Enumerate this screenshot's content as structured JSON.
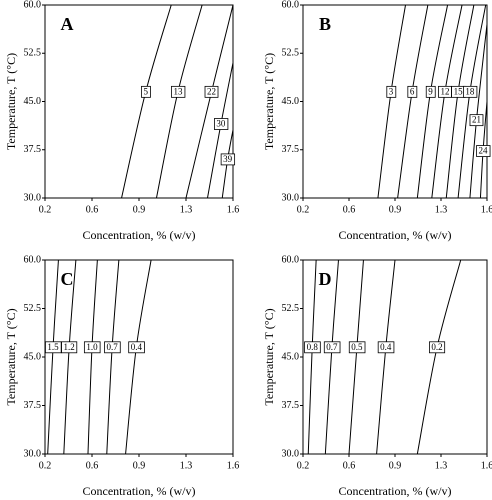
{
  "chart_data": [
    {
      "type": "contour",
      "label": "A",
      "x_label": "Concentration, % (w/v)",
      "y_label": "Temperature, T (°C)",
      "xlim": [
        0.2,
        1.6
      ],
      "ylim": [
        30,
        60
      ],
      "xticks": [
        0.2,
        {
          "value": 0.55,
          "label": "0.6"
        },
        0.9,
        {
          "value": 1.25,
          "label": "1.3"
        },
        1.6
      ],
      "yticks": [
        {
          "value": 30,
          "label": "30.0"
        },
        37.5,
        {
          "value": 45,
          "label": "45.0"
        },
        52.5,
        {
          "value": 60,
          "label": "60.0"
        }
      ],
      "levels": [
        5,
        13,
        22,
        30,
        39
      ],
      "lines": [
        {
          "x": [
            0.77,
            0.95,
            1.14
          ],
          "y": [
            30,
            46.5,
            60
          ]
        },
        {
          "x": [
            1.03,
            1.19,
            1.37
          ],
          "y": [
            30,
            46.5,
            60
          ]
        },
        {
          "x": [
            1.25,
            1.44,
            1.6
          ],
          "y": [
            30,
            46.5,
            60
          ]
        },
        {
          "x": [
            1.41,
            1.51,
            1.6
          ],
          "y": [
            30,
            41.5,
            51
          ]
        },
        {
          "x": [
            1.52,
            1.56,
            1.6
          ],
          "y": [
            30,
            36,
            40.6
          ]
        }
      ]
    },
    {
      "type": "contour",
      "label": "B",
      "x_label": "Concentration, % (w/v)",
      "y_label": "Temperature, T (°C)",
      "xlim": [
        0.2,
        1.6
      ],
      "ylim": [
        30,
        60
      ],
      "xticks": [
        0.2,
        {
          "value": 0.55,
          "label": "0.6"
        },
        0.9,
        {
          "value": 1.25,
          "label": "1.3"
        },
        1.6
      ],
      "yticks": [
        {
          "value": 30,
          "label": "30.0"
        },
        37.5,
        {
          "value": 45,
          "label": "45.0"
        },
        52.5,
        {
          "value": 60,
          "label": "60.0"
        }
      ],
      "levels": [
        3,
        6,
        9,
        12,
        15,
        18,
        21,
        24
      ],
      "lines": [
        {
          "x": [
            0.77,
            0.87,
            0.98
          ],
          "y": [
            30,
            46.5,
            60
          ]
        },
        {
          "x": [
            0.92,
            1.03,
            1.15
          ],
          "y": [
            30,
            46.5,
            60
          ]
        },
        {
          "x": [
            1.07,
            1.17,
            1.3
          ],
          "y": [
            30,
            46.5,
            60
          ]
        },
        {
          "x": [
            1.18,
            1.28,
            1.41
          ],
          "y": [
            30,
            46.5,
            60
          ]
        },
        {
          "x": [
            1.29,
            1.38,
            1.5
          ],
          "y": [
            30,
            46.5,
            60
          ]
        },
        {
          "x": [
            1.38,
            1.47,
            1.59
          ],
          "y": [
            30,
            46.5,
            60
          ]
        },
        {
          "x": [
            1.47,
            1.52,
            1.6
          ],
          "y": [
            30,
            42.1,
            57
          ]
        },
        {
          "x": [
            1.55,
            1.57,
            1.6
          ],
          "y": [
            30,
            37.3,
            45
          ]
        }
      ]
    },
    {
      "type": "contour",
      "label": "C",
      "x_label": "Concentration, % (w/v)",
      "y_label": "Temperature, T (°C)",
      "xlim": [
        0.2,
        1.6
      ],
      "ylim": [
        30,
        60
      ],
      "xticks": [
        0.2,
        {
          "value": 0.55,
          "label": "0.6"
        },
        0.9,
        {
          "value": 1.25,
          "label": "1.3"
        },
        1.6
      ],
      "yticks": [
        {
          "value": 30,
          "label": "30.0"
        },
        37.5,
        {
          "value": 45,
          "label": "45.0"
        },
        52.5,
        {
          "value": 60,
          "label": "60.0"
        }
      ],
      "levels": [
        1.5,
        1.2,
        1,
        0.7,
        0.4
      ],
      "level_labels": [
        "1.5",
        "1.2",
        "1.0",
        "0.7",
        "0.4"
      ],
      "lines": [
        {
          "x": [
            0.22,
            0.26,
            0.3
          ],
          "y": [
            30,
            46.5,
            60
          ]
        },
        {
          "x": [
            0.34,
            0.38,
            0.43
          ],
          "y": [
            30,
            46.5,
            60
          ]
        },
        {
          "x": [
            0.52,
            0.55,
            0.59
          ],
          "y": [
            30,
            46.5,
            60
          ]
        },
        {
          "x": [
            0.66,
            0.7,
            0.75
          ],
          "y": [
            30,
            46.5,
            60
          ]
        },
        {
          "x": [
            0.8,
            0.88,
            0.99
          ],
          "y": [
            30,
            46.5,
            60
          ]
        }
      ]
    },
    {
      "type": "contour",
      "label": "D",
      "x_label": "Concentration, % (w/v)",
      "y_label": "Temperature, T (°C)",
      "xlim": [
        0.2,
        1.6
      ],
      "ylim": [
        30,
        60
      ],
      "xticks": [
        0.2,
        {
          "value": 0.55,
          "label": "0.6"
        },
        0.9,
        {
          "value": 1.25,
          "label": "1.3"
        },
        1.6
      ],
      "yticks": [
        {
          "value": 30,
          "label": "30.0"
        },
        37.5,
        {
          "value": 45,
          "label": "45.0"
        },
        52.5,
        {
          "value": 60,
          "label": "60.0"
        }
      ],
      "levels": [
        0.8,
        0.7,
        0.5,
        0.4,
        0.2
      ],
      "lines": [
        {
          "x": [
            0.24,
            0.27,
            0.3
          ],
          "y": [
            30,
            46.5,
            60
          ]
        },
        {
          "x": [
            0.37,
            0.42,
            0.47
          ],
          "y": [
            30,
            46.5,
            60
          ]
        },
        {
          "x": [
            0.55,
            0.61,
            0.66
          ],
          "y": [
            30,
            46.5,
            60
          ]
        },
        {
          "x": [
            0.76,
            0.83,
            0.9
          ],
          "y": [
            30,
            46.5,
            60
          ]
        },
        {
          "x": [
            1.07,
            1.22,
            1.4
          ],
          "y": [
            30,
            46.5,
            60
          ]
        }
      ]
    }
  ]
}
